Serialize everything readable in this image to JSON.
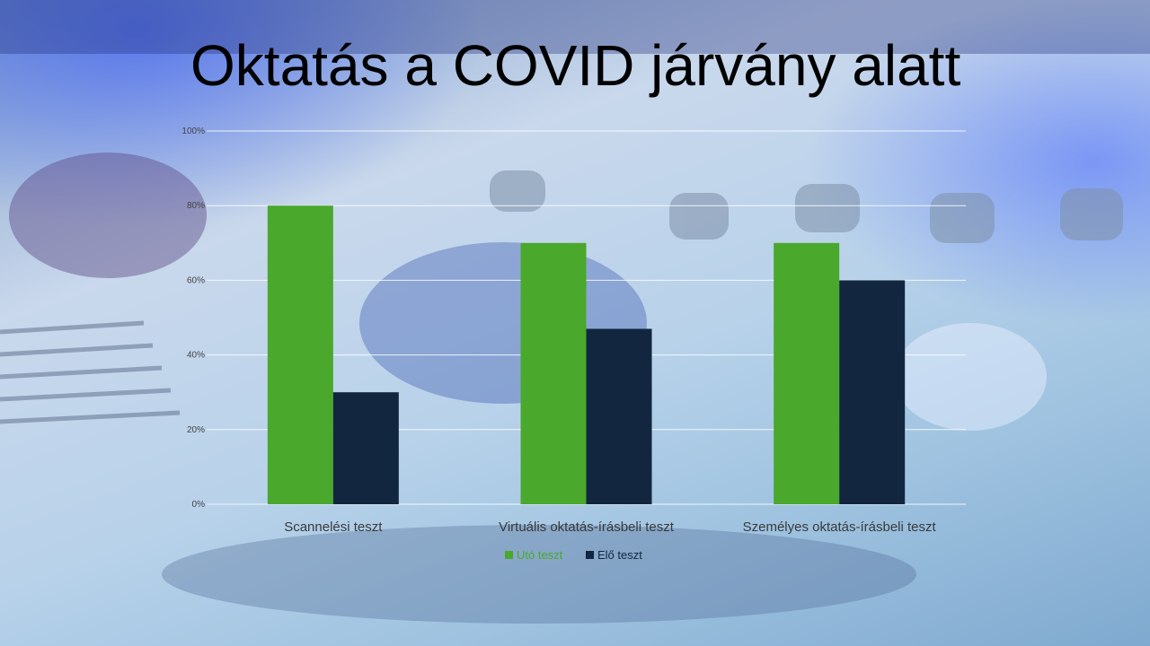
{
  "slide": {
    "title": "Oktatás a COVID járvány alatt"
  },
  "colors": {
    "series1": "#4aa82c",
    "series2": "#12263f",
    "grid": "#ffffff"
  },
  "chart_data": {
    "type": "bar",
    "categories": [
      "Scannelési teszt",
      "Virtuális oktatás-írásbeli teszt",
      "Személyes oktatás-írásbeli teszt"
    ],
    "series": [
      {
        "name": "Utó teszt",
        "values": [
          80,
          70,
          70
        ]
      },
      {
        "name": "Elő teszt",
        "values": [
          30,
          47,
          60
        ]
      }
    ],
    "ylim": [
      0,
      100
    ],
    "yticks": [
      "0%",
      "20%",
      "40%",
      "60%",
      "80%",
      "100%"
    ],
    "grid": true,
    "legend": "bottom"
  }
}
